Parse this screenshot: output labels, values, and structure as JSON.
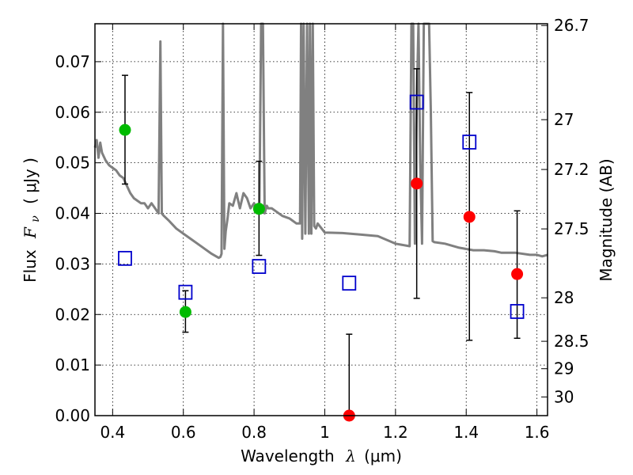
{
  "chart_data": {
    "type": "scatter",
    "xlabel_prefix": "Wavelength",
    "xlabel_symbol": "λ",
    "xlabel_unit": "(μm)",
    "ylabel_prefix": "Flux",
    "ylabel_symbol": "F",
    "ylabel_sub": "ν",
    "ylabel_unit": "( μJy )",
    "y2label": "Magnitude (AB)",
    "xlim": [
      0.35,
      1.63
    ],
    "ylim": [
      0.0,
      0.0775
    ],
    "x_ticks": [
      0.4,
      0.6,
      0.8,
      1.0,
      1.2,
      1.4,
      1.6
    ],
    "x_tick_labels": [
      "0.4",
      "0.6",
      "0.8",
      "1",
      "1.2",
      "1.4",
      "1.6"
    ],
    "y_ticks": [
      0.0,
      0.01,
      0.02,
      0.03,
      0.04,
      0.05,
      0.06,
      0.07
    ],
    "y_tick_labels": [
      "0.00",
      "0.01",
      "0.02",
      "0.03",
      "0.04",
      "0.05",
      "0.06",
      "0.07"
    ],
    "y2_ticks": [
      {
        "label": "26.7",
        "flux": 0.07715
      },
      {
        "label": "27",
        "flux": 0.05853
      },
      {
        "label": "27.2",
        "flux": 0.04868
      },
      {
        "label": "27.5",
        "flux": 0.03693
      },
      {
        "label": "28",
        "flux": 0.0233
      },
      {
        "label": "28.5",
        "flux": 0.0147
      },
      {
        "label": "29",
        "flux": 0.00928
      },
      {
        "label": "30",
        "flux": 0.00369
      }
    ],
    "grid": true,
    "colors": {
      "green": "#00bb00",
      "red": "#ff0000",
      "blue": "#0000cc",
      "model": "#808080"
    },
    "series": [
      {
        "marker": "circle",
        "color": "green",
        "points": [
          {
            "x": 0.435,
            "y": 0.0565,
            "lo": 0.0458,
            "hi": 0.0673
          },
          {
            "x": 0.606,
            "y": 0.0205,
            "lo": 0.0165,
            "hi": 0.0247
          },
          {
            "x": 0.814,
            "y": 0.0409,
            "lo": 0.0317,
            "hi": 0.0503
          }
        ]
      },
      {
        "marker": "circle",
        "color": "red",
        "points": [
          {
            "x": 1.069,
            "y": 0.0,
            "lo": 0.0,
            "hi": 0.0161
          },
          {
            "x": 1.26,
            "y": 0.0459,
            "lo": 0.0232,
            "hi": 0.0686
          },
          {
            "x": 1.409,
            "y": 0.0393,
            "lo": 0.0149,
            "hi": 0.0639
          },
          {
            "x": 1.544,
            "y": 0.028,
            "lo": 0.0153,
            "hi": 0.0405
          }
        ]
      },
      {
        "marker": "square",
        "color": "blue",
        "points": [
          {
            "x": 0.435,
            "y": 0.0311
          },
          {
            "x": 0.606,
            "y": 0.0244
          },
          {
            "x": 0.814,
            "y": 0.0295
          },
          {
            "x": 1.069,
            "y": 0.0262
          },
          {
            "x": 1.26,
            "y": 0.062
          },
          {
            "x": 1.409,
            "y": 0.0541
          },
          {
            "x": 1.544,
            "y": 0.0206
          }
        ]
      }
    ],
    "model_spectrum": {
      "x": [
        0.35,
        0.355,
        0.36,
        0.365,
        0.37,
        0.38,
        0.39,
        0.4,
        0.41,
        0.42,
        0.43,
        0.44,
        0.45,
        0.46,
        0.47,
        0.48,
        0.49,
        0.5,
        0.51,
        0.52,
        0.53,
        0.535,
        0.539,
        0.541,
        0.545,
        0.56,
        0.58,
        0.6,
        0.62,
        0.64,
        0.66,
        0.68,
        0.7,
        0.705,
        0.708,
        0.712,
        0.716,
        0.72,
        0.725,
        0.73,
        0.74,
        0.75,
        0.76,
        0.77,
        0.78,
        0.79,
        0.8,
        0.81,
        0.815,
        0.82,
        0.825,
        0.83,
        0.834,
        0.836,
        0.84,
        0.85,
        0.86,
        0.88,
        0.9,
        0.92,
        0.93,
        0.933,
        0.936,
        0.94,
        0.945,
        0.95,
        0.955,
        0.958,
        0.962,
        0.966,
        0.97,
        0.975,
        0.98,
        1.0,
        1.05,
        1.1,
        1.15,
        1.2,
        1.24,
        1.245,
        1.25,
        1.255,
        1.26,
        1.265,
        1.27,
        1.275,
        1.28,
        1.285,
        1.29,
        1.295,
        1.3,
        1.305,
        1.31,
        1.34,
        1.38,
        1.42,
        1.45,
        1.48,
        1.5,
        1.54,
        1.58,
        1.6,
        1.615,
        1.63
      ],
      "y": [
        0.053,
        0.0545,
        0.051,
        0.054,
        0.052,
        0.0505,
        0.0495,
        0.049,
        0.0485,
        0.0475,
        0.047,
        0.0455,
        0.044,
        0.043,
        0.0425,
        0.042,
        0.042,
        0.041,
        0.042,
        0.041,
        0.04,
        0.074,
        0.04,
        0.0398,
        0.0395,
        0.0385,
        0.037,
        0.036,
        0.035,
        0.034,
        0.033,
        0.032,
        0.0312,
        0.0314,
        0.032,
        0.0775,
        0.033,
        0.0365,
        0.039,
        0.042,
        0.0415,
        0.044,
        0.041,
        0.044,
        0.043,
        0.041,
        0.042,
        0.0405,
        0.04,
        0.0775,
        0.0775,
        0.04,
        0.041,
        0.0415,
        0.041,
        0.041,
        0.0405,
        0.0395,
        0.039,
        0.038,
        0.038,
        0.0775,
        0.035,
        0.0775,
        0.036,
        0.0775,
        0.036,
        0.0775,
        0.036,
        0.0775,
        0.0375,
        0.037,
        0.038,
        0.0362,
        0.0361,
        0.0358,
        0.0355,
        0.034,
        0.0335,
        0.0775,
        0.0775,
        0.034,
        0.062,
        0.0775,
        0.05,
        0.034,
        0.0775,
        0.0775,
        0.0775,
        0.0775,
        0.06,
        0.0345,
        0.0343,
        0.034,
        0.0332,
        0.0327,
        0.0327,
        0.0325,
        0.0322,
        0.0322,
        0.0318,
        0.0318,
        0.0315,
        0.0318
      ]
    }
  }
}
